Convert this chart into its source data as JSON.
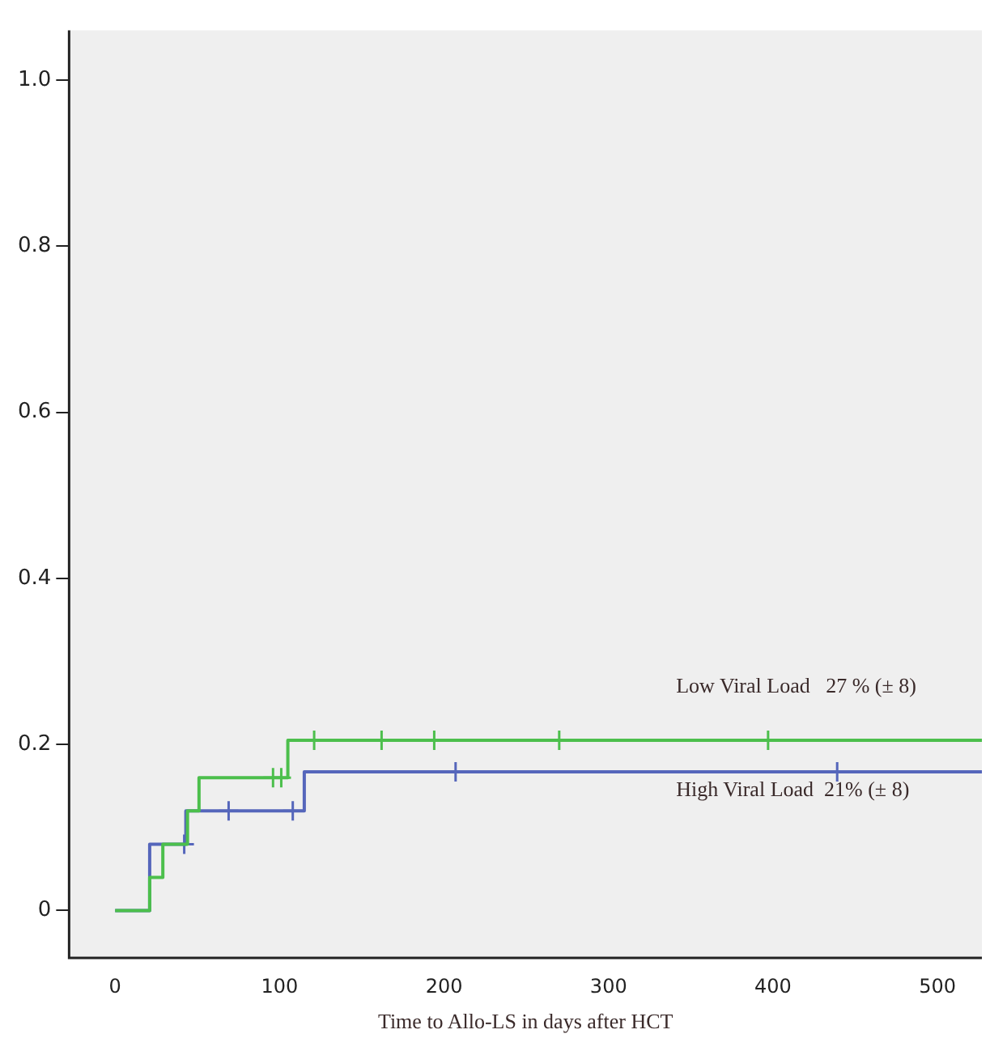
{
  "chart_data": {
    "type": "step",
    "xlabel": "Time to Allo-LS in days after HCT",
    "xlim": [
      -28,
      527
    ],
    "xticks": [
      0,
      100,
      200,
      300,
      400,
      500
    ],
    "ylim": [
      -0.057,
      1.06
    ],
    "yticks": [
      0.0,
      {
        "value": 0.2,
        "label": "0.2"
      },
      {
        "value": 0.4,
        "label": "0.4"
      },
      {
        "value": 0.6,
        "label": "0.6"
      },
      {
        "value": 0.8,
        "label": "0.8"
      },
      {
        "value": 1.0,
        "label": "1.0"
      }
    ],
    "grid": false,
    "legend": false,
    "series": [
      {
        "color": "#4cbf4c",
        "x": [
          0,
          21,
          29,
          44,
          51,
          105,
          527
        ],
        "values": [
          0,
          0.04,
          0.08,
          0.12,
          0.16,
          0.205,
          0.205
        ]
      },
      {
        "color": "#5566bb",
        "x": [
          0,
          21,
          43,
          115,
          527
        ],
        "values": [
          0,
          0.08,
          0.12,
          0.167,
          0.167
        ]
      },
      {
        "type": "scatter",
        "marker": "cross",
        "color": "#4cbf4c",
        "x": [
          96,
          101,
          121,
          162,
          194,
          270,
          397
        ],
        "values": [
          0.16,
          0.16,
          0.205,
          0.205,
          0.205,
          0.205,
          0.205
        ]
      },
      {
        "type": "scatter",
        "marker": "cross",
        "color": "#5566bb",
        "x": [
          42,
          69,
          108,
          207,
          439
        ],
        "values": [
          0.08,
          0.12,
          0.12,
          0.167,
          0.167
        ]
      }
    ],
    "annotations": [
      "Low Viral Load   27 % (± 8)",
      "High Viral Load  21% (± 8)"
    ]
  }
}
